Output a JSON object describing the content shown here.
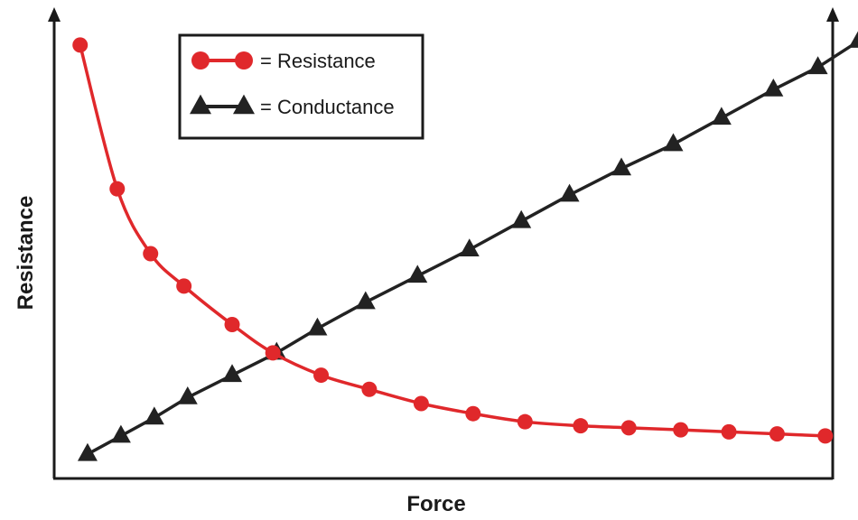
{
  "chart_data": {
    "type": "line",
    "title": "",
    "xlabel": "Force",
    "ylabel": "Resistance",
    "xlim": [
      0,
      21
    ],
    "ylim": [
      0,
      23
    ],
    "grid": false,
    "legend_position": "top-left",
    "series": [
      {
        "name": "Resistance",
        "marker": "circle",
        "color": "#e0282b",
        "points": [
          [
            0.7,
            21.4
          ],
          [
            1.7,
            14.3
          ],
          [
            2.6,
            11.1
          ],
          [
            3.5,
            9.5
          ],
          [
            4.8,
            7.6
          ],
          [
            5.9,
            6.2
          ],
          [
            7.2,
            5.1
          ],
          [
            8.5,
            4.4
          ],
          [
            9.9,
            3.7
          ],
          [
            11.3,
            3.2
          ],
          [
            12.7,
            2.8
          ],
          [
            14.2,
            2.6
          ],
          [
            15.5,
            2.5
          ],
          [
            16.9,
            2.4
          ],
          [
            18.2,
            2.3
          ],
          [
            19.5,
            2.2
          ],
          [
            20.8,
            2.1
          ]
        ]
      },
      {
        "name": "Conductance",
        "marker": "triangle",
        "color": "#222222",
        "points": [
          [
            0.9,
            1.2
          ],
          [
            1.8,
            2.1
          ],
          [
            2.7,
            3.0
          ],
          [
            3.6,
            4.0
          ],
          [
            4.8,
            5.1
          ],
          [
            6.0,
            6.2
          ],
          [
            7.1,
            7.4
          ],
          [
            8.4,
            8.7
          ],
          [
            9.8,
            10.0
          ],
          [
            11.2,
            11.3
          ],
          [
            12.6,
            12.7
          ],
          [
            13.9,
            14.0
          ],
          [
            15.3,
            15.3
          ],
          [
            16.7,
            16.5
          ],
          [
            18.0,
            17.8
          ],
          [
            19.4,
            19.2
          ],
          [
            20.6,
            20.3
          ],
          [
            21.7,
            21.6
          ]
        ]
      }
    ],
    "legend": [
      {
        "symbol": "circle",
        "label": "= Resistance"
      },
      {
        "symbol": "triangle",
        "label": "= Conductance"
      }
    ]
  }
}
